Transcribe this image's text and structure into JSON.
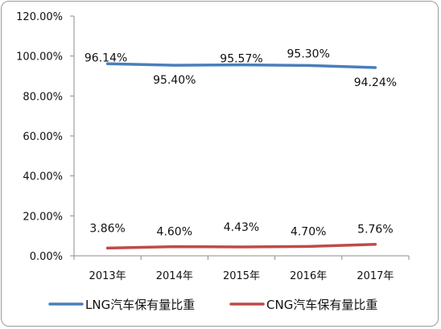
{
  "chart_data": {
    "type": "line",
    "title": "",
    "xlabel": "",
    "ylabel": "",
    "categories": [
      "2013年",
      "2014年",
      "2015年",
      "2016年",
      "2017年"
    ],
    "ylim": [
      0,
      120
    ],
    "y_ticks": [
      0,
      20,
      40,
      60,
      80,
      100,
      120
    ],
    "y_tick_labels": [
      "0.00%",
      "20.00%",
      "40.00%",
      "60.00%",
      "80.00%",
      "100.00%",
      "120.00%"
    ],
    "grid": false,
    "legend_position": "bottom",
    "series": [
      {
        "name": "LNG汽车保有量比重",
        "color": "#4a7ebb",
        "values": [
          96.14,
          95.4,
          95.57,
          95.3,
          94.24
        ],
        "labels": [
          "96.14%",
          "95.40%",
          "95.57%",
          "95.30%",
          "94.24%"
        ]
      },
      {
        "name": "CNG汽车保有量比重",
        "color": "#be4b48",
        "values": [
          3.86,
          4.6,
          4.43,
          4.7,
          5.76
        ],
        "labels": [
          "3.86%",
          "4.60%",
          "4.43%",
          "4.70%",
          "5.76%"
        ]
      }
    ]
  }
}
